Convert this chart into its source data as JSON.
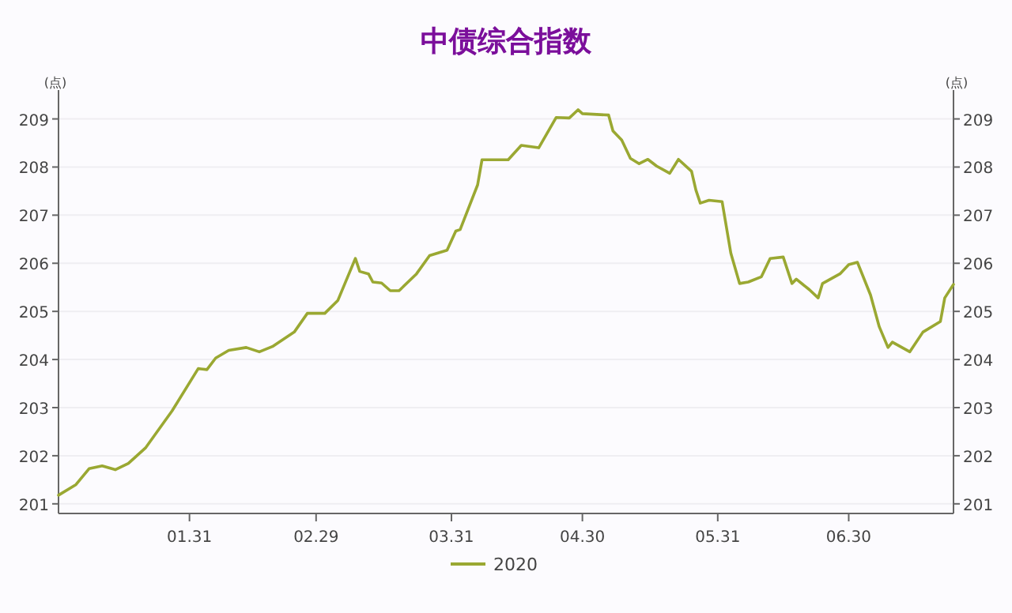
{
  "chart_data": {
    "type": "line",
    "title": "中债综合指数",
    "ylabel": "(点)",
    "y2label": "(点)",
    "x": [
      "2020-01-01",
      "2020-01-05",
      "2020-01-08",
      "2020-01-11",
      "2020-01-14",
      "2020-01-17",
      "2020-01-21",
      "2020-01-27",
      "2020-02-02",
      "2020-02-04",
      "2020-02-06",
      "2020-02-09",
      "2020-02-13",
      "2020-02-16",
      "2020-02-19",
      "2020-02-24",
      "2020-02-27",
      "2020-03-02",
      "2020-03-05",
      "2020-03-09",
      "2020-03-10",
      "2020-03-12",
      "2020-03-13",
      "2020-03-15",
      "2020-03-17",
      "2020-03-19",
      "2020-03-23",
      "2020-03-26",
      "2020-03-30",
      "2020-04-01",
      "2020-04-02",
      "2020-04-06",
      "2020-04-07",
      "2020-04-09",
      "2020-04-13",
      "2020-04-16",
      "2020-04-20",
      "2020-04-24",
      "2020-04-27",
      "2020-04-29",
      "2020-04-30",
      "2020-05-06",
      "2020-05-07",
      "2020-05-09",
      "2020-05-11",
      "2020-05-13",
      "2020-05-15",
      "2020-05-17",
      "2020-05-20",
      "2020-05-22",
      "2020-05-25",
      "2020-05-26",
      "2020-05-27",
      "2020-05-29",
      "2020-06-01",
      "2020-06-03",
      "2020-06-05",
      "2020-06-07",
      "2020-06-10",
      "2020-06-12",
      "2020-06-15",
      "2020-06-17",
      "2020-06-18",
      "2020-06-21",
      "2020-06-23",
      "2020-06-24",
      "2020-06-28",
      "2020-06-30",
      "2020-07-02",
      "2020-07-05",
      "2020-07-07",
      "2020-07-09",
      "2020-07-10",
      "2020-07-14",
      "2020-07-17",
      "2020-07-21",
      "2020-07-22",
      "2020-07-24"
    ],
    "series": [
      {
        "name": "2020",
        "color": "#9aa832",
        "values": [
          201.18,
          201.4,
          201.73,
          201.79,
          201.71,
          201.84,
          202.17,
          202.93,
          203.81,
          203.79,
          204.03,
          204.19,
          204.25,
          204.16,
          204.27,
          204.57,
          204.96,
          204.96,
          205.23,
          206.1,
          205.83,
          205.78,
          205.61,
          205.59,
          205.43,
          205.43,
          205.78,
          206.16,
          206.27,
          206.67,
          206.7,
          207.63,
          208.15,
          208.15,
          208.15,
          208.45,
          208.4,
          209.03,
          209.02,
          209.19,
          209.11,
          209.08,
          208.75,
          208.56,
          208.18,
          208.07,
          208.16,
          208.02,
          207.87,
          208.16,
          207.91,
          207.52,
          207.25,
          207.31,
          207.28,
          206.21,
          205.58,
          205.61,
          205.72,
          206.1,
          206.13,
          205.58,
          205.67,
          205.45,
          205.28,
          205.58,
          205.78,
          205.97,
          206.02,
          205.34,
          204.68,
          204.25,
          204.36,
          204.16,
          204.57,
          204.79,
          205.28,
          205.56
        ]
      }
    ],
    "xlim": [
      "2020-01-01",
      "2020-07-24"
    ],
    "xticks": [
      {
        "value": "2020-01-31",
        "label": "01.31"
      },
      {
        "value": "2020-02-29",
        "label": "02.29"
      },
      {
        "value": "2020-03-31",
        "label": "03.31"
      },
      {
        "value": "2020-04-30",
        "label": "04.30"
      },
      {
        "value": "2020-05-31",
        "label": "05.31"
      },
      {
        "value": "2020-06-30",
        "label": "06.30"
      }
    ],
    "ylim": [
      200.8,
      209.6
    ],
    "yticks": [
      201,
      202,
      203,
      204,
      205,
      206,
      207,
      208,
      209
    ],
    "y2lim": [
      200.8,
      209.6
    ],
    "y2ticks": [
      201,
      202,
      203,
      204,
      205,
      206,
      207,
      208,
      209
    ],
    "grid": "y",
    "legend": "bottom",
    "line_style": "solid"
  }
}
